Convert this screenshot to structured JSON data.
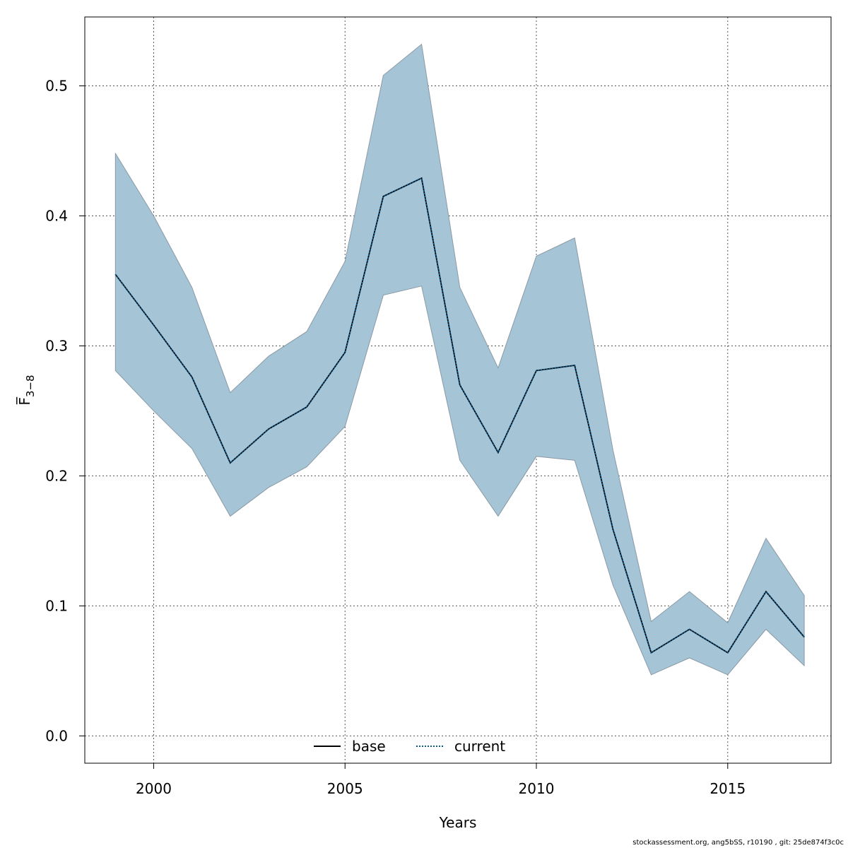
{
  "chart_data": {
    "type": "area",
    "xlabel": "Years",
    "ylabel": "F̅",
    "ylabel_subscript": "3−8",
    "xlim": [
      1998.2,
      2017.7
    ],
    "ylim": [
      -0.021,
      0.553
    ],
    "x_ticks": [
      2000,
      2005,
      2010,
      2015
    ],
    "y_ticks": [
      0.0,
      0.1,
      0.2,
      0.3,
      0.4,
      0.5
    ],
    "y_tick_labels": [
      "0.0",
      "0.1",
      "0.2",
      "0.3",
      "0.4",
      "0.5"
    ],
    "grid": true,
    "legend_placement": "bottom-center",
    "x": [
      1999,
      2000,
      2001,
      2002,
      2003,
      2004,
      2005,
      2006,
      2007,
      2008,
      2009,
      2010,
      2011,
      2012,
      2013,
      2014,
      2015,
      2016,
      2017
    ],
    "band": {
      "upper": [
        0.448,
        0.4,
        0.345,
        0.264,
        0.292,
        0.311,
        0.365,
        0.508,
        0.532,
        0.345,
        0.283,
        0.369,
        0.383,
        0.22,
        0.088,
        0.111,
        0.087,
        0.152,
        0.108
      ],
      "lower": [
        0.281,
        0.25,
        0.221,
        0.169,
        0.191,
        0.207,
        0.238,
        0.339,
        0.346,
        0.212,
        0.169,
        0.215,
        0.212,
        0.116,
        0.047,
        0.06,
        0.047,
        0.082,
        0.054
      ],
      "color": "#a5c4d6",
      "edge_color": "#8a9aa6"
    },
    "series": [
      {
        "name": "base",
        "style": "solid",
        "color": "#000000",
        "values": [
          0.355,
          0.316,
          0.276,
          0.21,
          0.236,
          0.253,
          0.295,
          0.415,
          0.429,
          0.27,
          0.218,
          0.281,
          0.285,
          0.159,
          0.064,
          0.082,
          0.064,
          0.111,
          0.076
        ]
      },
      {
        "name": "current",
        "style": "dotted",
        "color": "#0b5a8a",
        "values": [
          0.355,
          0.316,
          0.276,
          0.21,
          0.236,
          0.253,
          0.295,
          0.415,
          0.429,
          0.27,
          0.218,
          0.281,
          0.285,
          0.159,
          0.064,
          0.082,
          0.064,
          0.111,
          0.076
        ]
      }
    ],
    "legend": [
      {
        "label": "base",
        "style": "solid",
        "color": "#000000"
      },
      {
        "label": "current",
        "style": "dotted",
        "color": "#0b5a8a"
      }
    ]
  },
  "footer": "stockassessment.org, ang5bSS, r10190 , git: 25de874f3c0c"
}
